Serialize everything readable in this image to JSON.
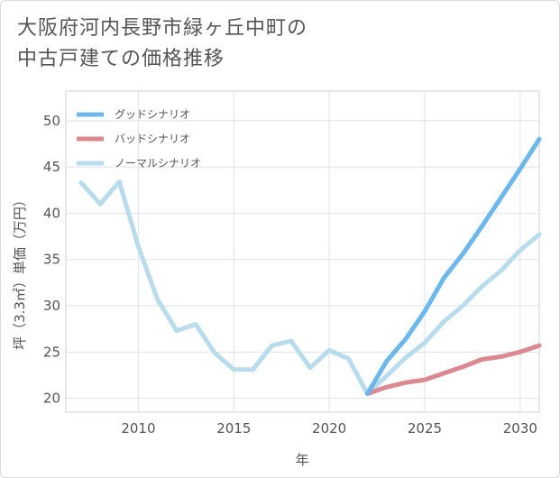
{
  "title_lines": [
    "大阪府河内長野市緑ヶ丘中町の",
    "中古戸建ての価格推移"
  ],
  "chart_data": {
    "type": "line",
    "title": "大阪府河内長野市緑ヶ丘中町の中古戸建ての価格推移",
    "xlabel": "年",
    "ylabel": "坪（3.3㎡）単価（万円）",
    "xlim": [
      2006.2,
      2031
    ],
    "ylim": [
      18.5,
      53.2
    ],
    "x_ticks": [
      2010,
      2015,
      2020,
      2025,
      2030
    ],
    "y_ticks": [
      20,
      25,
      30,
      35,
      40,
      45,
      50
    ],
    "grid": true,
    "legend_position": "top-left",
    "series": [
      {
        "name": "グッドシナリオ",
        "color": "#6cb8ec",
        "x": [
          2022,
          2023,
          2024,
          2025,
          2026,
          2027,
          2028,
          2029,
          2030,
          2031
        ],
        "y": [
          20.5,
          24.0,
          26.4,
          29.4,
          33.0,
          35.6,
          38.6,
          41.7,
          44.8,
          48.0
        ]
      },
      {
        "name": "バッドシナリオ",
        "color": "#dc8890",
        "x": [
          2022,
          2023,
          2024,
          2025,
          2026,
          2027,
          2028,
          2029,
          2030,
          2031
        ],
        "y": [
          20.5,
          21.2,
          21.7,
          22.0,
          22.7,
          23.4,
          24.2,
          24.5,
          25.0,
          25.7
        ]
      },
      {
        "name": "ノーマルシナリオ",
        "color": "#b9dcec",
        "x": [
          2007,
          2008,
          2009,
          2010,
          2011,
          2012,
          2013,
          2014,
          2015,
          2016,
          2017,
          2018,
          2019,
          2020,
          2021,
          2022,
          2023,
          2024,
          2025,
          2026,
          2027,
          2028,
          2029,
          2030,
          2031
        ],
        "y": [
          43.3,
          41.0,
          43.4,
          36.4,
          30.7,
          27.3,
          28.0,
          24.9,
          23.1,
          23.1,
          25.7,
          26.2,
          23.3,
          25.2,
          24.3,
          20.5,
          22.4,
          24.4,
          26.0,
          28.3,
          30.0,
          32.1,
          33.8,
          36.0,
          37.7
        ]
      }
    ]
  }
}
